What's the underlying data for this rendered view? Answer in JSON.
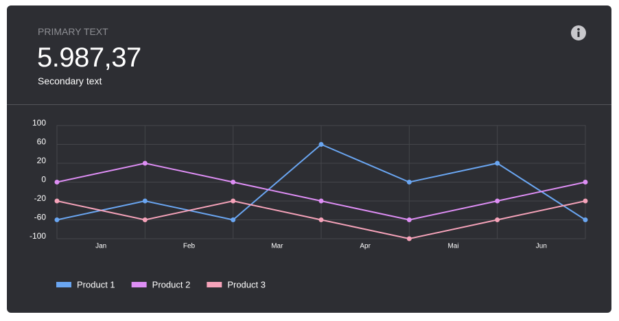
{
  "header": {
    "overline": "PRIMARY TEXT",
    "value": "5.987,37",
    "secondary": "Secondary text"
  },
  "chart_data": {
    "type": "line",
    "categories": [
      "Jan",
      "Feb",
      "Mar",
      "Apr",
      "Mai",
      "Jun",
      null
    ],
    "series": [
      {
        "name": "Product 1",
        "color": "#6aa6f2",
        "values": [
          -60,
          -20,
          -60,
          60,
          0,
          20,
          -60
        ]
      },
      {
        "name": "Product 2",
        "color": "#de8ef5",
        "values": [
          0,
          20,
          0,
          -20,
          -60,
          -20,
          0
        ]
      },
      {
        "name": "Product 3",
        "color": "#f6a3ba",
        "values": [
          -20,
          -60,
          -20,
          -60,
          -100,
          -60,
          -20
        ]
      }
    ],
    "ylim": [
      -100,
      100
    ],
    "yticks": [
      -100,
      -60,
      -20,
      0,
      20,
      60,
      100
    ],
    "grid": true,
    "legend": "bottom-left"
  }
}
